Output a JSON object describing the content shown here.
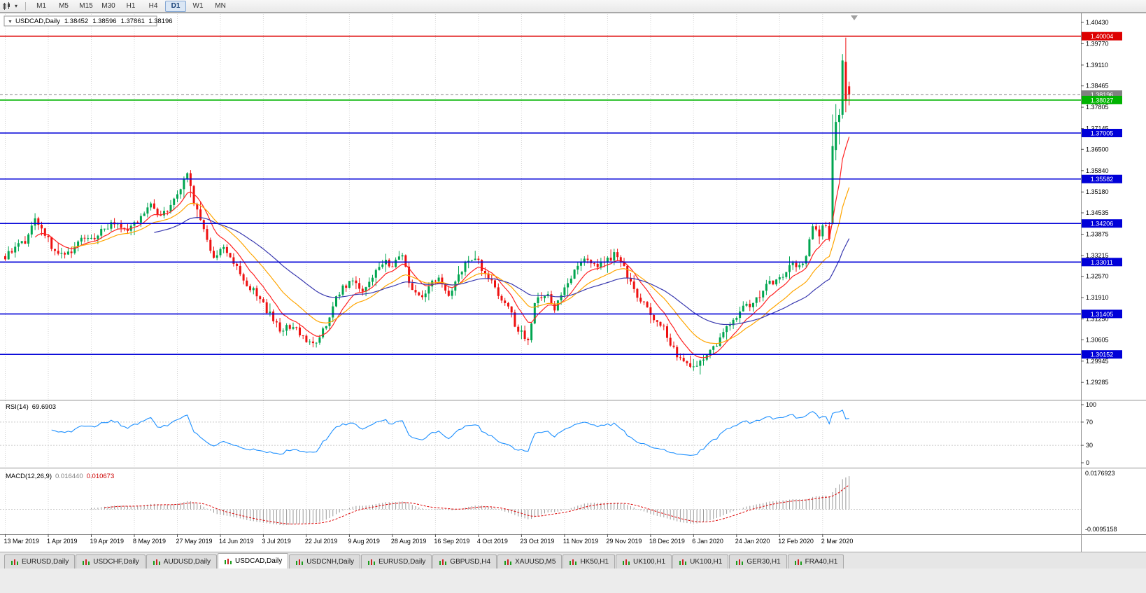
{
  "toolbar": {
    "timeframes": [
      "M1",
      "M5",
      "M15",
      "M30",
      "H1",
      "H4",
      "D1",
      "W1",
      "MN"
    ],
    "active_timeframe": "D1"
  },
  "chart": {
    "symbol_period": "USDCAD,Daily",
    "collapse_icon": "▼",
    "ohlc": {
      "open": "1.38452",
      "high": "1.38596",
      "low": "1.37861",
      "close": "1.38196"
    }
  },
  "price_axis": {
    "ticks": [
      "1.40430",
      "1.39770",
      "1.39110",
      "1.38465",
      "1.37805",
      "1.37145",
      "1.36500",
      "1.35840",
      "1.35180",
      "1.34535",
      "1.33875",
      "1.33215",
      "1.32570",
      "1.31910",
      "1.31250",
      "1.30605",
      "1.29945",
      "1.29285"
    ]
  },
  "date_axis": {
    "ticks": [
      "13 Mar 2019",
      "1 Apr 2019",
      "19 Apr 2019",
      "8 May 2019",
      "27 May 2019",
      "14 Jun 2019",
      "3 Jul 2019",
      "22 Jul 2019",
      "9 Aug 2019",
      "28 Aug 2019",
      "16 Sep 2019",
      "4 Oct 2019",
      "23 Oct 2019",
      "11 Nov 2019",
      "29 Nov 2019",
      "18 Dec 2019",
      "6 Jan 2020",
      "24 Jan 2020",
      "12 Feb 2020",
      "2 Mar 2020"
    ]
  },
  "levels": [
    {
      "label": "1.40004",
      "value": 1.40004,
      "color": "#dd0000",
      "style": "solid",
      "kind": "resistance-line"
    },
    {
      "label": "1.38196",
      "value": 1.38196,
      "color": "#808080",
      "style": "dashed",
      "kind": "current-price-line"
    },
    {
      "label": "1.38027",
      "value": 1.38027,
      "color": "#00b300",
      "style": "solid",
      "kind": "support-line-green"
    },
    {
      "label": "1.37005",
      "value": 1.37005,
      "color": "#0000d8",
      "style": "solid",
      "kind": "support-line-blue"
    },
    {
      "label": "1.35582",
      "value": 1.35582,
      "color": "#0000d8",
      "style": "solid",
      "kind": "support-line-blue"
    },
    {
      "label": "1.34206",
      "value": 1.34206,
      "color": "#0000d8",
      "style": "solid",
      "kind": "support-line-blue"
    },
    {
      "label": "1.33011",
      "value": 1.33011,
      "color": "#0000d8",
      "style": "solid",
      "kind": "support-line-blue"
    },
    {
      "label": "1.31405",
      "value": 1.31405,
      "color": "#0000d8",
      "style": "solid",
      "kind": "support-line-blue"
    },
    {
      "label": "1.30152",
      "value": 1.30152,
      "color": "#0000d8",
      "style": "solid",
      "kind": "support-line-blue"
    }
  ],
  "indicators": {
    "rsi": {
      "name": "RSI(14)",
      "value": "69.6903",
      "line_color": "#1e90ff",
      "scale_labels": [
        "100",
        "70",
        "30",
        "0"
      ],
      "scale_values": [
        100,
        70,
        30,
        0
      ],
      "guide_levels": [
        70,
        30
      ]
    },
    "macd": {
      "name": "MACD(12,26,9)",
      "macd_value": "0.016440",
      "signal_value": "0.010673",
      "axis_max_label": "0.0176923",
      "axis_min_label": "-0.0095158",
      "histogram_color": "#9a9a9a",
      "signal_color": "#dd0000"
    }
  },
  "chart_data": {
    "type": "candlestick",
    "symbol": "USDCAD",
    "timeframe": "Daily",
    "visible_price_range": [
      1.2877,
      1.4069
    ],
    "candle_count": 256,
    "up_color": "#00a550",
    "down_color": "#ee1111",
    "close_path_anchors": [
      [
        0,
        1.332
      ],
      [
        6,
        1.336
      ],
      [
        9,
        1.3425
      ],
      [
        12,
        1.337
      ],
      [
        16,
        1.332
      ],
      [
        20,
        1.3345
      ],
      [
        24,
        1.336
      ],
      [
        28,
        1.3385
      ],
      [
        32,
        1.342
      ],
      [
        36,
        1.3395
      ],
      [
        40,
        1.344
      ],
      [
        44,
        1.346
      ],
      [
        47,
        1.343
      ],
      [
        50,
        1.348
      ],
      [
        53,
        1.352
      ],
      [
        55,
        1.356
      ],
      [
        57,
        1.349
      ],
      [
        60,
        1.339
      ],
      [
        63,
        1.333
      ],
      [
        66,
        1.3355
      ],
      [
        69,
        1.329
      ],
      [
        72,
        1.3245
      ],
      [
        75,
        1.322
      ],
      [
        78,
        1.316
      ],
      [
        81,
        1.3125
      ],
      [
        84,
        1.308
      ],
      [
        87,
        1.3105
      ],
      [
        90,
        1.306
      ],
      [
        93,
        1.3045
      ],
      [
        96,
        1.309
      ],
      [
        99,
        1.316
      ],
      [
        102,
        1.3215
      ],
      [
        105,
        1.325
      ],
      [
        108,
        1.3225
      ],
      [
        111,
        1.3265
      ],
      [
        114,
        1.329
      ],
      [
        117,
        1.3295
      ],
      [
        120,
        1.333
      ],
      [
        122,
        1.3245
      ],
      [
        125,
        1.3185
      ],
      [
        128,
        1.3215
      ],
      [
        131,
        1.325
      ],
      [
        134,
        1.322
      ],
      [
        137,
        1.3265
      ],
      [
        140,
        1.332
      ],
      [
        143,
        1.329
      ],
      [
        146,
        1.324
      ],
      [
        149,
        1.32
      ],
      [
        152,
        1.3145
      ],
      [
        155,
        1.308
      ],
      [
        158,
        1.3055
      ],
      [
        160,
        1.3175
      ],
      [
        163,
        1.3205
      ],
      [
        166,
        1.3165
      ],
      [
        169,
        1.323
      ],
      [
        172,
        1.327
      ],
      [
        175,
        1.33
      ],
      [
        178,
        1.331
      ],
      [
        181,
        1.3295
      ],
      [
        184,
        1.332
      ],
      [
        187,
        1.328
      ],
      [
        190,
        1.322
      ],
      [
        193,
        1.318
      ],
      [
        196,
        1.3135
      ],
      [
        199,
        1.309
      ],
      [
        202,
        1.304
      ],
      [
        205,
        1.2985
      ],
      [
        208,
        1.296
      ],
      [
        211,
        1.299
      ],
      [
        214,
        1.305
      ],
      [
        217,
        1.308
      ],
      [
        220,
        1.311
      ],
      [
        223,
        1.3145
      ],
      [
        226,
        1.317
      ],
      [
        229,
        1.3215
      ],
      [
        232,
        1.324
      ],
      [
        235,
        1.3265
      ],
      [
        238,
        1.33
      ],
      [
        240,
        1.328
      ],
      [
        242,
        1.333
      ],
      [
        244,
        1.343
      ],
      [
        246,
        1.338
      ],
      [
        248,
        1.342
      ],
      [
        249,
        1.339
      ],
      [
        250,
        1.366
      ]
    ],
    "final_candles_ohlc": [
      [
        1.3422,
        1.3758,
        1.3417,
        1.366
      ],
      [
        1.3648,
        1.379,
        1.3616,
        1.3735
      ],
      [
        1.3735,
        1.3775,
        1.3665,
        1.3757
      ],
      [
        1.3757,
        1.3945,
        1.3745,
        1.3925
      ],
      [
        1.3921,
        1.3996,
        1.3765,
        1.38
      ],
      [
        1.38452,
        1.38596,
        1.37861,
        1.38196
      ]
    ],
    "moving_averages": [
      {
        "period": 9,
        "color": "#ff2222"
      },
      {
        "period": 20,
        "color": "#ffa500"
      },
      {
        "period": 45,
        "color": "#3b3bb0"
      }
    ]
  },
  "tabs": {
    "items": [
      {
        "label": "EURUSD,Daily"
      },
      {
        "label": "USDCHF,Daily"
      },
      {
        "label": "AUDUSD,Daily"
      },
      {
        "label": "USDCAD,Daily",
        "active": true
      },
      {
        "label": "USDCNH,Daily"
      },
      {
        "label": "EURUSD,Daily"
      },
      {
        "label": "GBPUSD,H4"
      },
      {
        "label": "XAUUSD,M5"
      },
      {
        "label": "HK50,H1"
      },
      {
        "label": "UK100,H1"
      },
      {
        "label": "UK100,H1"
      },
      {
        "label": "GER30,H1"
      },
      {
        "label": "FRA40,H1"
      }
    ]
  }
}
